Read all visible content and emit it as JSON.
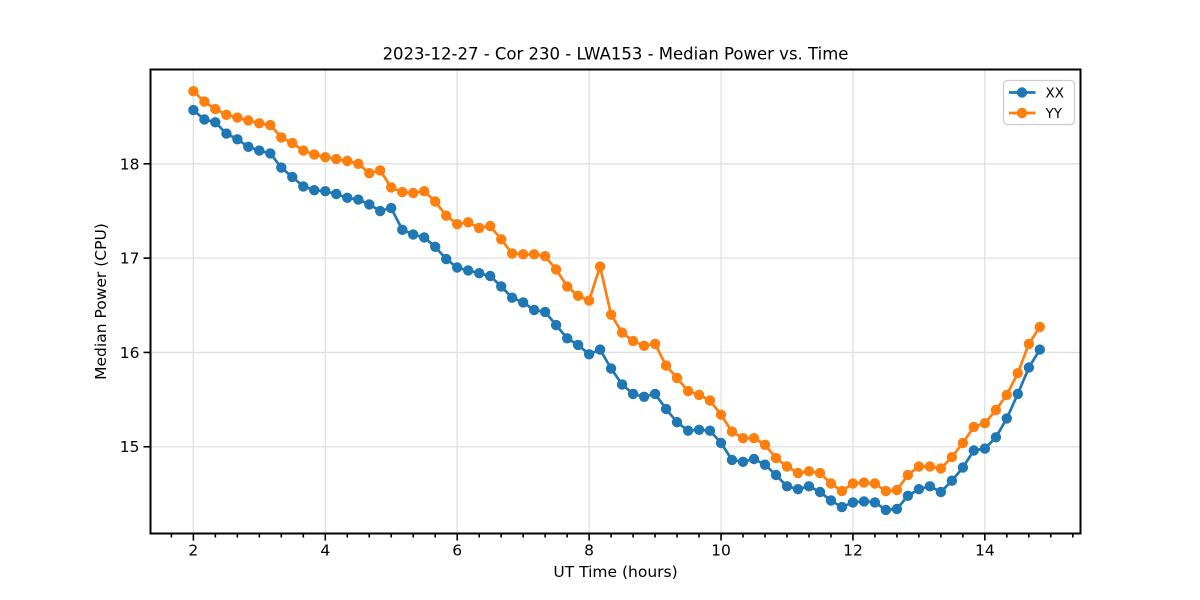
{
  "chart_data": {
    "type": "line",
    "title": "2023-12-27 - Cor 230 - LWA153 - Median Power vs. Time",
    "xlabel": "UT Time (hours)",
    "ylabel": "Median Power (CPU)",
    "grid": true,
    "legend_position": "upper right",
    "background": "#ffffff",
    "grid_color": "#dfdfdf",
    "xlim": [
      1.35,
      15.45
    ],
    "ylim": [
      14.08,
      19.0
    ],
    "x_major_ticks": [
      2,
      4,
      6,
      8,
      10,
      12,
      14
    ],
    "x_minor_step": 0.3333,
    "y_ticks": [
      15,
      16,
      17,
      18
    ],
    "x_hours": [
      2.0,
      2.167,
      2.333,
      2.5,
      2.667,
      2.833,
      3.0,
      3.167,
      3.333,
      3.5,
      3.667,
      3.833,
      4.0,
      4.167,
      4.333,
      4.5,
      4.667,
      4.833,
      5.0,
      5.167,
      5.333,
      5.5,
      5.667,
      5.833,
      6.0,
      6.167,
      6.333,
      6.5,
      6.667,
      6.833,
      7.0,
      7.167,
      7.333,
      7.5,
      7.667,
      7.833,
      8.0,
      8.167,
      8.333,
      8.5,
      8.667,
      8.833,
      9.0,
      9.167,
      9.333,
      9.5,
      9.667,
      9.833,
      10.0,
      10.167,
      10.333,
      10.5,
      10.667,
      10.833,
      11.0,
      11.167,
      11.333,
      11.5,
      11.667,
      11.833,
      12.0,
      12.167,
      12.333,
      12.5,
      12.667,
      12.833,
      13.0,
      13.167,
      13.333,
      13.5,
      13.667,
      13.833,
      14.0,
      14.167,
      14.333,
      14.5,
      14.667,
      14.833
    ],
    "series": [
      {
        "name": "XX",
        "color": "#1f77b4",
        "values": [
          18.57,
          18.47,
          18.44,
          18.32,
          18.26,
          18.18,
          18.14,
          18.11,
          17.96,
          17.86,
          17.76,
          17.72,
          17.71,
          17.68,
          17.64,
          17.62,
          17.57,
          17.5,
          17.53,
          17.3,
          17.25,
          17.22,
          17.12,
          16.99,
          16.9,
          16.87,
          16.84,
          16.81,
          16.7,
          16.58,
          16.53,
          16.45,
          16.43,
          16.29,
          16.15,
          16.08,
          15.98,
          16.03,
          15.83,
          15.66,
          15.56,
          15.53,
          15.56,
          15.4,
          15.26,
          15.17,
          15.18,
          15.17,
          15.04,
          14.86,
          14.84,
          14.87,
          14.81,
          14.7,
          14.58,
          14.55,
          14.58,
          14.52,
          14.43,
          14.36,
          14.41,
          14.42,
          14.41,
          14.33,
          14.34,
          14.48,
          14.55,
          14.58,
          14.52,
          14.64,
          14.78,
          14.96,
          14.98,
          15.1,
          15.3,
          15.56,
          15.84,
          16.03
        ]
      },
      {
        "name": "YY",
        "color": "#ff7f0e",
        "values": [
          18.77,
          18.66,
          18.58,
          18.52,
          18.49,
          18.46,
          18.43,
          18.41,
          18.28,
          18.22,
          18.14,
          18.1,
          18.07,
          18.05,
          18.03,
          18.0,
          17.9,
          17.93,
          17.75,
          17.7,
          17.69,
          17.71,
          17.6,
          17.45,
          17.36,
          17.38,
          17.32,
          17.34,
          17.2,
          17.05,
          17.04,
          17.04,
          17.02,
          16.88,
          16.7,
          16.6,
          16.55,
          16.91,
          16.4,
          16.21,
          16.12,
          16.07,
          16.09,
          15.86,
          15.73,
          15.59,
          15.55,
          15.49,
          15.34,
          15.16,
          15.09,
          15.09,
          15.02,
          14.88,
          14.79,
          14.72,
          14.74,
          14.72,
          14.61,
          14.53,
          14.61,
          14.62,
          14.61,
          14.53,
          14.54,
          14.7,
          14.79,
          14.79,
          14.77,
          14.89,
          15.04,
          15.21,
          15.25,
          15.39,
          15.55,
          15.78,
          16.09,
          16.27
        ]
      }
    ]
  }
}
